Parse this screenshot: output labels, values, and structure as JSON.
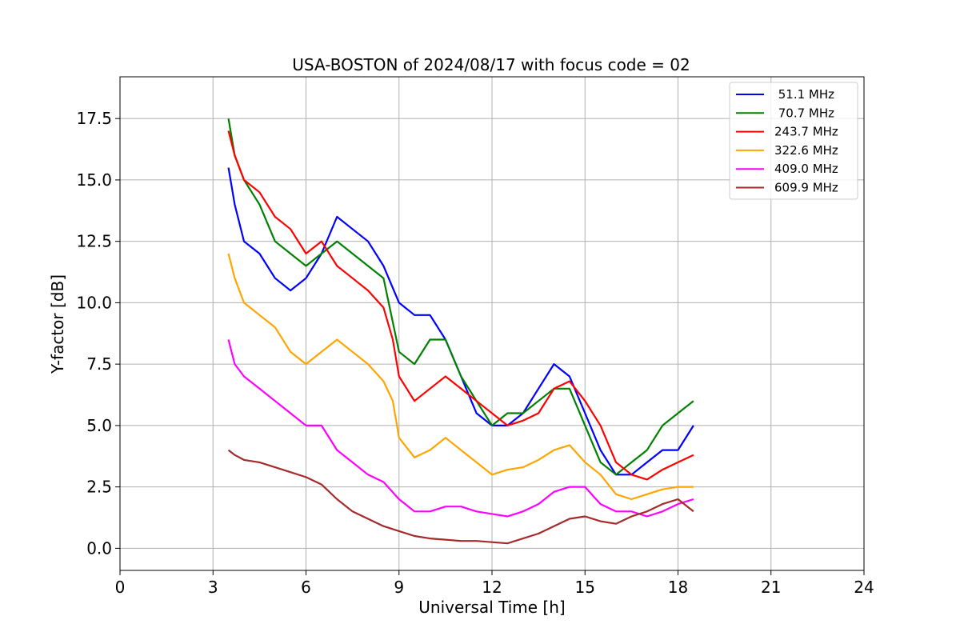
{
  "chart_data": {
    "type": "line",
    "title": "USA-BOSTON of 2024/08/17 with focus code = 02",
    "xlabel": "Universal Time [h]",
    "ylabel": "Y-factor [dB]",
    "xlim": [
      0,
      24
    ],
    "ylim": [
      -0.9,
      19.2
    ],
    "xticks": [
      0,
      3,
      6,
      9,
      12,
      15,
      18,
      21,
      24
    ],
    "xtick_labels": [
      "0",
      "3",
      "6",
      "9",
      "12",
      "15",
      "18",
      "21",
      "24"
    ],
    "yticks": [
      0,
      2.5,
      5,
      7.5,
      10,
      12.5,
      15,
      17.5
    ],
    "ytick_labels": [
      "0.0",
      "2.5",
      "5.0",
      "7.5",
      "10.0",
      "12.5",
      "15.0",
      "17.5"
    ],
    "grid": true,
    "legend_position": "top-right",
    "series": [
      {
        "name": " 51.1 MHz",
        "color": "#0000ff",
        "x": [
          3.5,
          3.7,
          4.0,
          4.5,
          5.0,
          5.5,
          6.0,
          6.5,
          7.0,
          7.5,
          8.0,
          8.5,
          9.0,
          9.5,
          10.0,
          10.5,
          11.0,
          11.5,
          12.0,
          12.5,
          13.0,
          13.5,
          14.0,
          14.5,
          15.0,
          15.5,
          16.0,
          16.5,
          17.0,
          17.5,
          18.0,
          18.5
        ],
        "y": [
          15.5,
          14.0,
          12.5,
          12.0,
          11.0,
          10.5,
          11.0,
          12.0,
          13.5,
          13.0,
          12.5,
          11.5,
          10.0,
          9.5,
          9.5,
          8.5,
          7.0,
          5.5,
          5.0,
          5.0,
          5.5,
          6.5,
          7.5,
          7.0,
          5.5,
          4.0,
          3.0,
          3.0,
          3.5,
          4.0,
          4.0,
          5.0
        ]
      },
      {
        "name": " 70.7 MHz",
        "color": "#008000",
        "x": [
          3.5,
          3.7,
          4.0,
          4.5,
          5.0,
          5.5,
          6.0,
          6.5,
          7.0,
          7.5,
          8.0,
          8.5,
          9.0,
          9.5,
          10.0,
          10.5,
          11.0,
          11.5,
          12.0,
          12.5,
          13.0,
          13.5,
          14.0,
          14.5,
          15.0,
          15.5,
          16.0,
          16.5,
          17.0,
          17.5,
          18.0,
          18.5
        ],
        "y": [
          17.5,
          16.0,
          15.0,
          14.0,
          12.5,
          12.0,
          11.5,
          12.0,
          12.5,
          12.0,
          11.5,
          11.0,
          8.0,
          7.5,
          8.5,
          8.5,
          7.0,
          6.0,
          5.0,
          5.5,
          5.5,
          6.0,
          6.5,
          6.5,
          5.0,
          3.5,
          3.0,
          3.5,
          4.0,
          5.0,
          5.5,
          6.0
        ]
      },
      {
        "name": "243.7 MHz",
        "color": "#ff0000",
        "x": [
          3.5,
          3.7,
          4.0,
          4.5,
          5.0,
          5.5,
          6.0,
          6.5,
          7.0,
          7.5,
          8.0,
          8.5,
          8.8,
          9.0,
          9.5,
          10.0,
          10.5,
          11.0,
          11.5,
          12.0,
          12.5,
          13.0,
          13.5,
          14.0,
          14.5,
          15.0,
          15.5,
          16.0,
          16.5,
          17.0,
          17.5,
          18.0,
          18.5
        ],
        "y": [
          17.0,
          16.0,
          15.0,
          14.5,
          13.5,
          13.0,
          12.0,
          12.5,
          11.5,
          11.0,
          10.5,
          9.8,
          8.5,
          7.0,
          6.0,
          6.5,
          7.0,
          6.5,
          6.0,
          5.5,
          5.0,
          5.2,
          5.5,
          6.5,
          6.8,
          6.0,
          5.0,
          3.5,
          3.0,
          2.8,
          3.2,
          3.5,
          3.8
        ]
      },
      {
        "name": "322.6 MHz",
        "color": "#ffa500",
        "x": [
          3.5,
          3.7,
          4.0,
          4.5,
          5.0,
          5.5,
          6.0,
          6.5,
          7.0,
          7.5,
          8.0,
          8.5,
          8.8,
          9.0,
          9.5,
          10.0,
          10.5,
          11.0,
          11.5,
          12.0,
          12.5,
          13.0,
          13.5,
          14.0,
          14.5,
          15.0,
          15.5,
          16.0,
          16.5,
          17.0,
          17.5,
          18.0,
          18.5
        ],
        "y": [
          12.0,
          11.0,
          10.0,
          9.5,
          9.0,
          8.0,
          7.5,
          8.0,
          8.5,
          8.0,
          7.5,
          6.8,
          6.0,
          4.5,
          3.7,
          4.0,
          4.5,
          4.0,
          3.5,
          3.0,
          3.2,
          3.3,
          3.6,
          4.0,
          4.2,
          3.5,
          3.0,
          2.2,
          2.0,
          2.2,
          2.4,
          2.5,
          2.5
        ]
      },
      {
        "name": "409.0 MHz",
        "color": "#ff00ff",
        "x": [
          3.5,
          3.7,
          4.0,
          4.5,
          5.0,
          5.5,
          6.0,
          6.5,
          7.0,
          7.5,
          8.0,
          8.5,
          9.0,
          9.5,
          10.0,
          10.5,
          11.0,
          11.5,
          12.0,
          12.5,
          13.0,
          13.5,
          14.0,
          14.5,
          15.0,
          15.5,
          16.0,
          16.5,
          17.0,
          17.5,
          18.0,
          18.5
        ],
        "y": [
          8.5,
          7.5,
          7.0,
          6.5,
          6.0,
          5.5,
          5.0,
          5.0,
          4.0,
          3.5,
          3.0,
          2.7,
          2.0,
          1.5,
          1.5,
          1.7,
          1.7,
          1.5,
          1.4,
          1.3,
          1.5,
          1.8,
          2.3,
          2.5,
          2.5,
          1.8,
          1.5,
          1.5,
          1.3,
          1.5,
          1.8,
          2.0
        ]
      },
      {
        "name": "609.9 MHz",
        "color": "#a52a2a",
        "x": [
          3.5,
          3.7,
          4.0,
          4.5,
          5.0,
          5.5,
          6.0,
          6.5,
          7.0,
          7.5,
          8.0,
          8.5,
          9.0,
          9.5,
          10.0,
          10.5,
          11.0,
          11.5,
          12.0,
          12.5,
          13.0,
          13.5,
          14.0,
          14.5,
          15.0,
          15.5,
          16.0,
          16.5,
          17.0,
          17.5,
          18.0,
          18.5
        ],
        "y": [
          4.0,
          3.8,
          3.6,
          3.5,
          3.3,
          3.1,
          2.9,
          2.6,
          2.0,
          1.5,
          1.2,
          0.9,
          0.7,
          0.5,
          0.4,
          0.35,
          0.3,
          0.3,
          0.25,
          0.2,
          0.4,
          0.6,
          0.9,
          1.2,
          1.3,
          1.1,
          1.0,
          1.3,
          1.5,
          1.8,
          2.0,
          1.5
        ]
      }
    ]
  }
}
